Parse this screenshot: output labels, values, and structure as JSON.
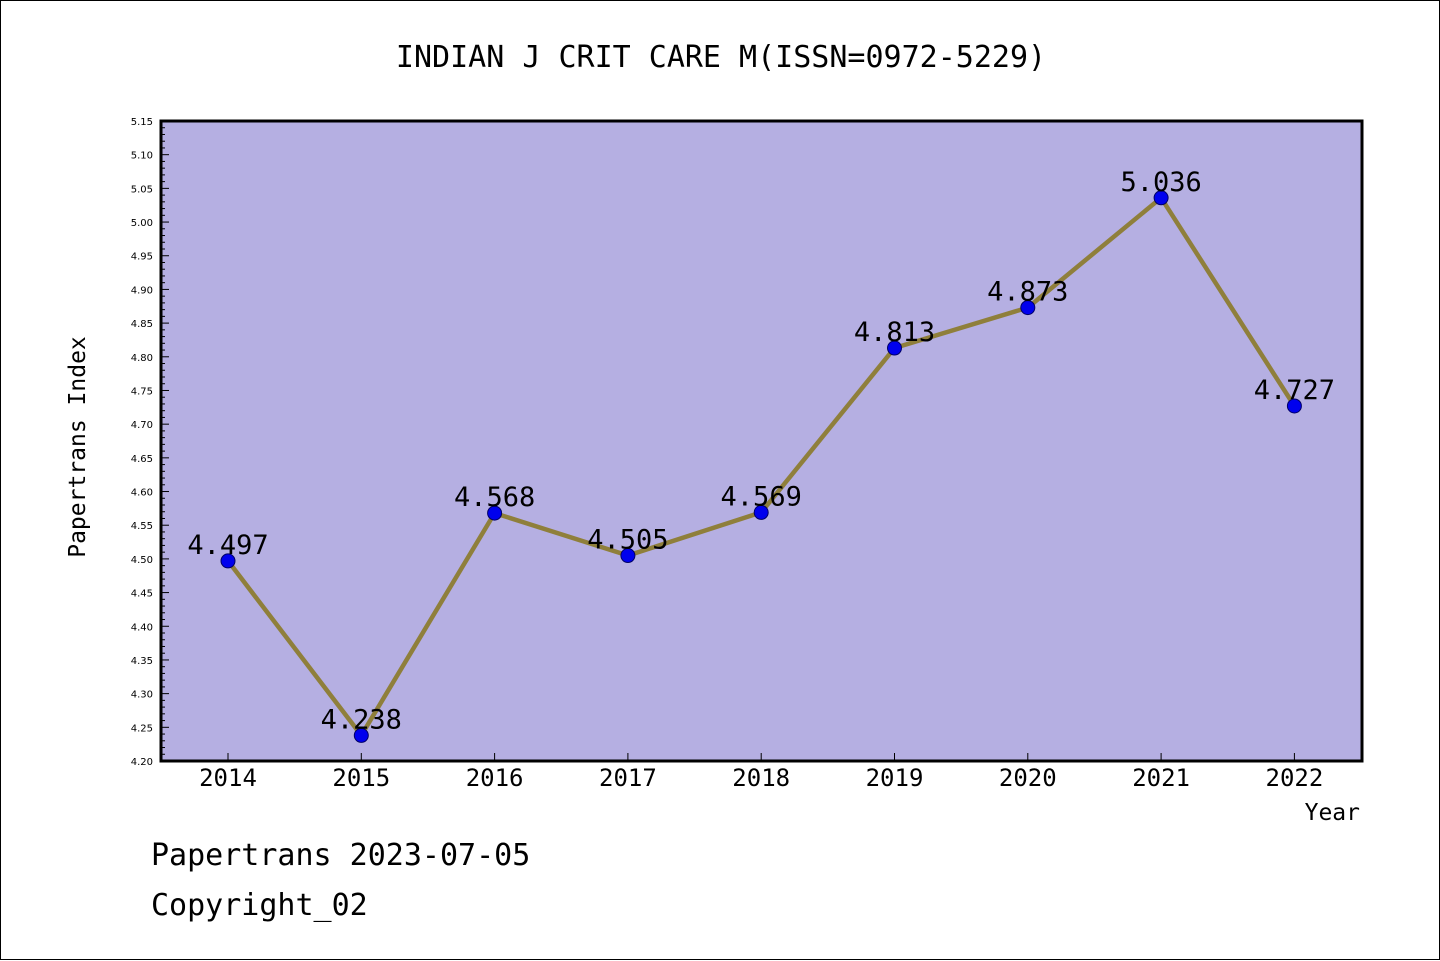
{
  "chart_data": {
    "type": "line",
    "title": "INDIAN J CRIT CARE M(ISSN=0972-5229)",
    "xlabel": "Year",
    "ylabel": "Papertrans Index",
    "categories": [
      "2014",
      "2015",
      "2016",
      "2017",
      "2018",
      "2019",
      "2020",
      "2021",
      "2022"
    ],
    "series": [
      {
        "values": [
          4.497,
          4.238,
          4.568,
          4.505,
          4.569,
          4.813,
          4.873,
          5.036,
          4.727
        ],
        "labels": [
          "4.497",
          "4.238",
          "4.568",
          "4.505",
          "4.569",
          "4.813",
          "4.873",
          "5.036",
          "4.727"
        ]
      }
    ],
    "ylim": [
      4.2,
      5.15
    ],
    "yticks": [
      "4.20",
      "4.25",
      "4.30",
      "4.35",
      "4.40",
      "4.45",
      "4.50",
      "4.55",
      "4.60",
      "4.65",
      "4.70",
      "4.75",
      "4.80",
      "4.85",
      "4.90",
      "4.95",
      "5.00",
      "5.05",
      "5.10",
      "5.15"
    ],
    "grid": false,
    "colors": {
      "plot_background": "#b5afe2",
      "line": "#8f7f3b",
      "marker": "#0000ee",
      "marker_edge": "#000066"
    }
  },
  "footer": {
    "line1": "Papertrans 2023-07-05",
    "line2": "Copyright_02"
  }
}
